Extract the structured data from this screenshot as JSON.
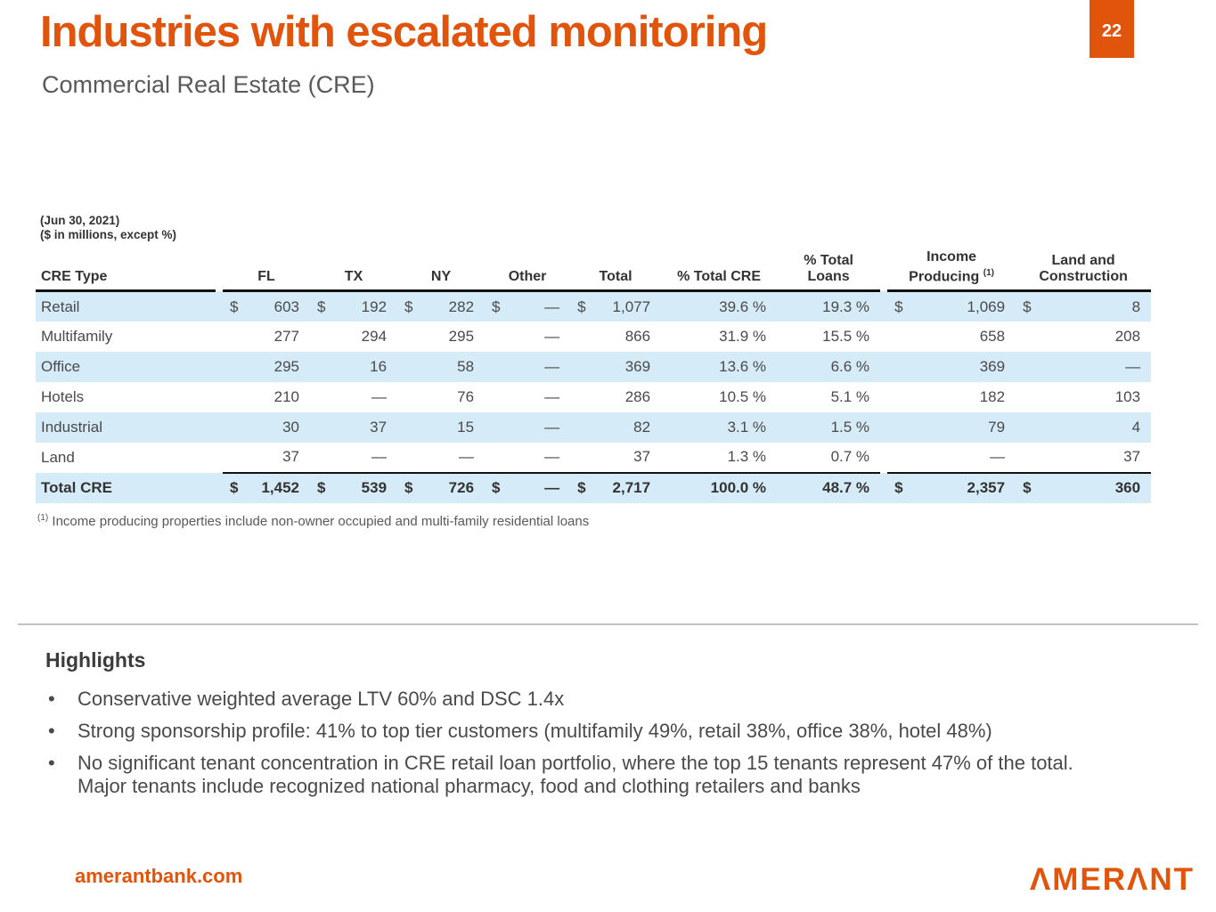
{
  "page": {
    "number": "22",
    "title": "Industries with escalated monitoring",
    "subtitle": "Commercial Real Estate (CRE)"
  },
  "table": {
    "note_line1": "(Jun 30, 2021)",
    "note_line2": "($ in millions, except %)",
    "columns": {
      "cre_type": "CRE Type",
      "fl": "FL",
      "tx": "TX",
      "ny": "NY",
      "other": "Other",
      "total": "Total",
      "pct_total_cre": "% Total CRE",
      "pct_total_loans_line1": "% Total",
      "pct_total_loans_line2": "Loans",
      "income_line1": "Income",
      "income_line2": "Producing",
      "income_sup": "(1)",
      "land_line1": "Land and",
      "land_line2": "Construction"
    },
    "rows": [
      {
        "label": "Retail",
        "fl_d": "$",
        "fl": "603",
        "tx_d": "$",
        "tx": "192",
        "ny_d": "$",
        "ny": "282",
        "other_d": "$",
        "other": "—",
        "total_d": "$",
        "total": "1,077",
        "pct_cre": "39.6 %",
        "pct_loans": "19.3 %",
        "inc_d": "$",
        "inc": "1,069",
        "land_d": "$",
        "land": "8"
      },
      {
        "label": "Multifamily",
        "fl_d": "",
        "fl": "277",
        "tx_d": "",
        "tx": "294",
        "ny_d": "",
        "ny": "295",
        "other_d": "",
        "other": "—",
        "total_d": "",
        "total": "866",
        "pct_cre": "31.9 %",
        "pct_loans": "15.5 %",
        "inc_d": "",
        "inc": "658",
        "land_d": "",
        "land": "208"
      },
      {
        "label": "Office",
        "fl_d": "",
        "fl": "295",
        "tx_d": "",
        "tx": "16",
        "ny_d": "",
        "ny": "58",
        "other_d": "",
        "other": "—",
        "total_d": "",
        "total": "369",
        "pct_cre": "13.6 %",
        "pct_loans": "6.6 %",
        "inc_d": "",
        "inc": "369",
        "land_d": "",
        "land": "—"
      },
      {
        "label": "Hotels",
        "fl_d": "",
        "fl": "210",
        "tx_d": "",
        "tx": "—",
        "ny_d": "",
        "ny": "76",
        "other_d": "",
        "other": "—",
        "total_d": "",
        "total": "286",
        "pct_cre": "10.5 %",
        "pct_loans": "5.1 %",
        "inc_d": "",
        "inc": "182",
        "land_d": "",
        "land": "103"
      },
      {
        "label": "Industrial",
        "fl_d": "",
        "fl": "30",
        "tx_d": "",
        "tx": "37",
        "ny_d": "",
        "ny": "15",
        "other_d": "",
        "other": "—",
        "total_d": "",
        "total": "82",
        "pct_cre": "3.1 %",
        "pct_loans": "1.5 %",
        "inc_d": "",
        "inc": "79",
        "land_d": "",
        "land": "4"
      },
      {
        "label": "Land",
        "fl_d": "",
        "fl": "37",
        "tx_d": "",
        "tx": "—",
        "ny_d": "",
        "ny": "—",
        "other_d": "",
        "other": "—",
        "total_d": "",
        "total": "37",
        "pct_cre": "1.3 %",
        "pct_loans": "0.7 %",
        "inc_d": "",
        "inc": "—",
        "land_d": "",
        "land": "37"
      }
    ],
    "total_row": {
      "label": "Total CRE",
      "fl_d": "$",
      "fl": "1,452",
      "tx_d": "$",
      "tx": "539",
      "ny_d": "$",
      "ny": "726",
      "other_d": "$",
      "other": "—",
      "total_d": "$",
      "total": "2,717",
      "pct_cre": "100.0 %",
      "pct_loans": "48.7 %",
      "inc_d": "$",
      "inc": "2,357",
      "land_d": "$",
      "land": "360"
    },
    "footnote_sup": "(1)",
    "footnote": "Income producing properties include non-owner occupied and multi-family residential loans"
  },
  "highlights": {
    "heading": "Highlights",
    "bullets": [
      {
        "lines": [
          "Conservative weighted average LTV 60% and DSC 1.4x"
        ]
      },
      {
        "lines": [
          "Strong sponsorship profile: 41% to top tier customers (multifamily 49%, retail 38%, office 38%, hotel 48%)"
        ]
      },
      {
        "lines": [
          "No significant tenant concentration in CRE retail loan portfolio, where the top 15 tenants represent 47% of the total.",
          "Major tenants include recognized national pharmacy, food and clothing retailers and banks"
        ]
      }
    ]
  },
  "footer": {
    "website": "amerantbank.com",
    "logo": "ΛMERΛNT"
  },
  "colors": {
    "accent_orange": "#E0540C",
    "row_blue": "#D6EBF8",
    "rule_dark": "#111111",
    "text_gray": "#595959"
  }
}
